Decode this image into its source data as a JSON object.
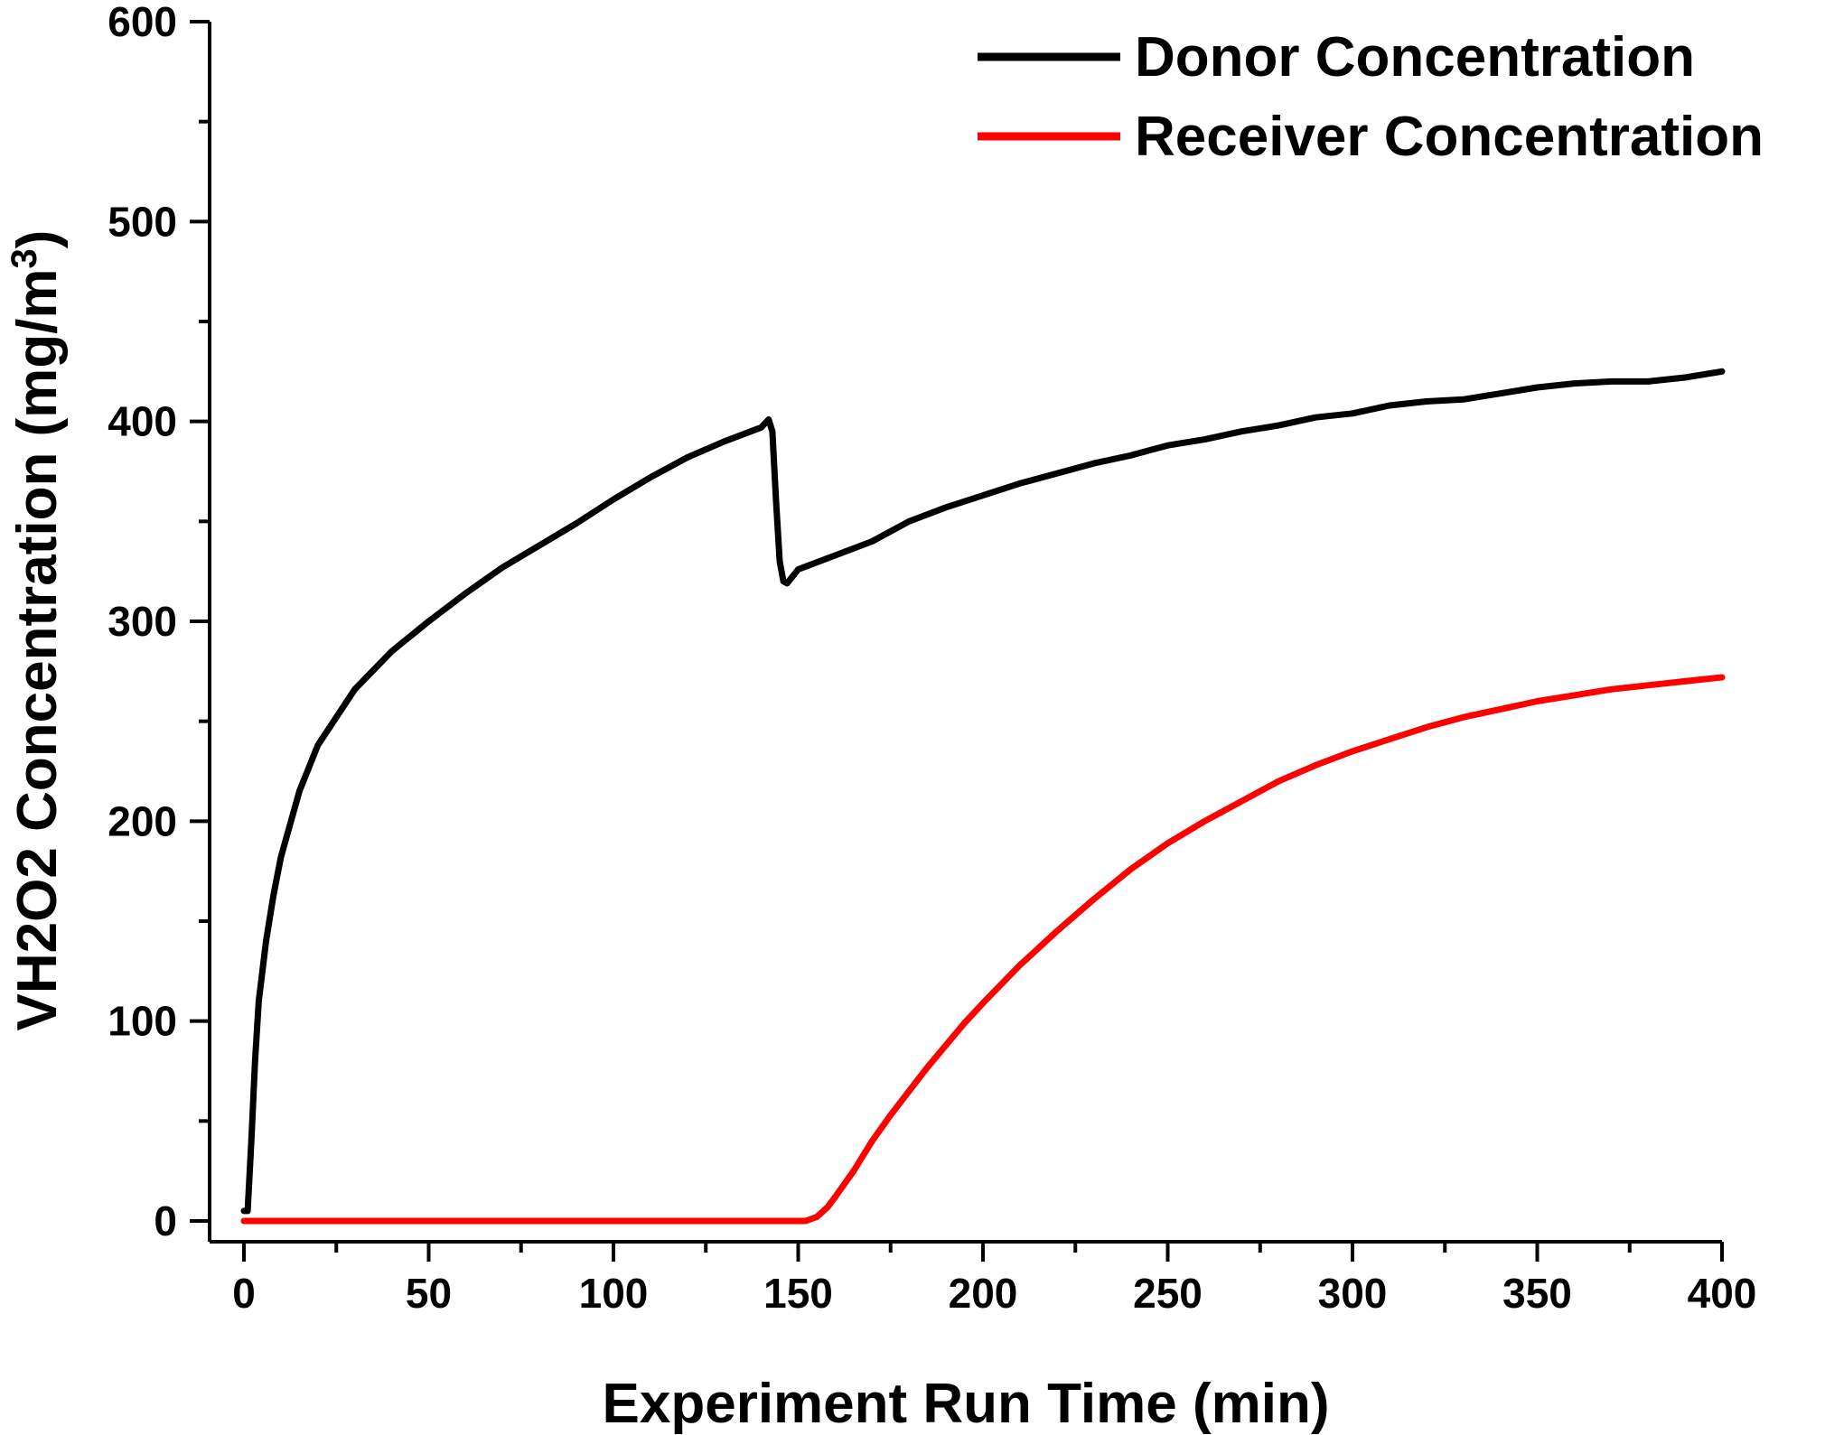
{
  "chart_data": {
    "type": "line",
    "title": "",
    "xlabel": "Experiment Run Time (min)",
    "ylabel_main": "VH2O2 Concentration (mg/m",
    "ylabel_sup": "3",
    "ylabel_end": ")",
    "xlim": [
      0,
      400
    ],
    "ylim": [
      0,
      600
    ],
    "xticks": [
      0,
      50,
      100,
      150,
      200,
      250,
      300,
      350,
      400
    ],
    "xtick_labels": [
      "0",
      "50",
      "100",
      "150",
      "200",
      "250",
      "300",
      "350",
      "400"
    ],
    "yticks": [
      0,
      100,
      200,
      300,
      400,
      500,
      600
    ],
    "ytick_labels": [
      "0",
      "100",
      "200",
      "300",
      "400",
      "500",
      "600"
    ],
    "xminor_step": 25,
    "yminor_step": 50,
    "grid": false,
    "legend_position": "top-right",
    "series": [
      {
        "name": "Donor Concentration",
        "color": "#000000",
        "points": [
          [
            0,
            5
          ],
          [
            1,
            5
          ],
          [
            2,
            40
          ],
          [
            3,
            80
          ],
          [
            4,
            110
          ],
          [
            6,
            140
          ],
          [
            8,
            163
          ],
          [
            10,
            182
          ],
          [
            15,
            215
          ],
          [
            20,
            238
          ],
          [
            25,
            252
          ],
          [
            30,
            266
          ],
          [
            40,
            285
          ],
          [
            50,
            300
          ],
          [
            60,
            314
          ],
          [
            70,
            327
          ],
          [
            80,
            338
          ],
          [
            90,
            349
          ],
          [
            100,
            361
          ],
          [
            110,
            372
          ],
          [
            120,
            382
          ],
          [
            130,
            390
          ],
          [
            140,
            397
          ],
          [
            142,
            401
          ],
          [
            143,
            395
          ],
          [
            144,
            360
          ],
          [
            145,
            330
          ],
          [
            146,
            320
          ],
          [
            147,
            319
          ],
          [
            150,
            326
          ],
          [
            160,
            333
          ],
          [
            170,
            340
          ],
          [
            180,
            350
          ],
          [
            190,
            357
          ],
          [
            200,
            363
          ],
          [
            210,
            369
          ],
          [
            220,
            374
          ],
          [
            230,
            379
          ],
          [
            240,
            383
          ],
          [
            250,
            388
          ],
          [
            260,
            391
          ],
          [
            270,
            395
          ],
          [
            280,
            398
          ],
          [
            290,
            402
          ],
          [
            300,
            404
          ],
          [
            310,
            408
          ],
          [
            320,
            410
          ],
          [
            330,
            411
          ],
          [
            340,
            414
          ],
          [
            350,
            417
          ],
          [
            360,
            419
          ],
          [
            370,
            420
          ],
          [
            380,
            420
          ],
          [
            390,
            422
          ],
          [
            400,
            425
          ]
        ]
      },
      {
        "name": "Receiver Concentration",
        "color": "#ff0000",
        "points": [
          [
            0,
            0
          ],
          [
            50,
            0
          ],
          [
            100,
            0
          ],
          [
            150,
            0
          ],
          [
            152,
            0
          ],
          [
            155,
            2
          ],
          [
            158,
            7
          ],
          [
            160,
            12
          ],
          [
            165,
            25
          ],
          [
            170,
            40
          ],
          [
            175,
            53
          ],
          [
            180,
            65
          ],
          [
            185,
            77
          ],
          [
            190,
            88
          ],
          [
            195,
            99
          ],
          [
            200,
            109
          ],
          [
            210,
            128
          ],
          [
            220,
            145
          ],
          [
            230,
            161
          ],
          [
            240,
            176
          ],
          [
            250,
            189
          ],
          [
            260,
            200
          ],
          [
            270,
            210
          ],
          [
            280,
            220
          ],
          [
            290,
            228
          ],
          [
            300,
            235
          ],
          [
            310,
            241
          ],
          [
            320,
            247
          ],
          [
            330,
            252
          ],
          [
            340,
            256
          ],
          [
            350,
            260
          ],
          [
            360,
            263
          ],
          [
            370,
            266
          ],
          [
            380,
            268
          ],
          [
            390,
            270
          ],
          [
            400,
            272
          ]
        ]
      }
    ]
  }
}
